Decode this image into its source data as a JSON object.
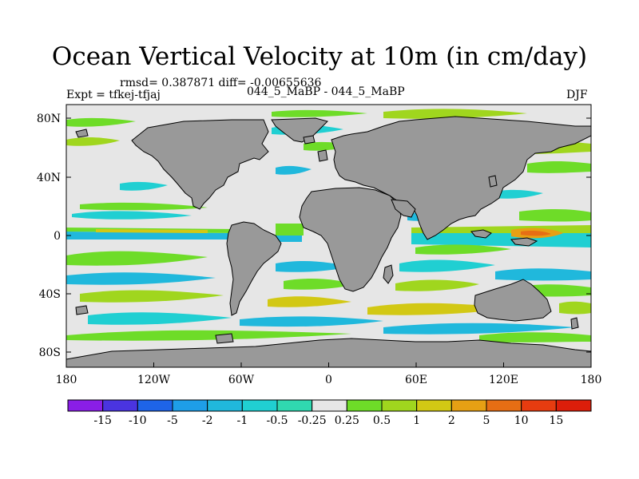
{
  "title": "Ocean Vertical Velocity at 10m (in cm/day)",
  "stats": "rmsd= 0.387871 diff= -0.00655636",
  "experiment": "Expt = tfkej-tfjaj",
  "cases": "044_5_MaBP - 044_5_MaBP",
  "season": "DJF",
  "lat_labels": [
    "80N",
    "40N",
    "0",
    "40S",
    "80S"
  ],
  "lon_labels": [
    "180",
    "120W",
    "60W",
    "0",
    "60E",
    "120E",
    "180"
  ],
  "colorbar": {
    "labels": [
      "-15",
      "-10",
      "-5",
      "-2",
      "-1",
      "-0.5",
      "-0.25",
      "0.25",
      "0.5",
      "1",
      "2",
      "5",
      "10",
      "15"
    ],
    "colors": [
      "#8a1ee6",
      "#4a34e0",
      "#1e64e8",
      "#1e9ee8",
      "#20b8dc",
      "#20cfd2",
      "#30d8b0",
      "#e6e6e6",
      "#6edc28",
      "#a0d61e",
      "#d2c814",
      "#e6a014",
      "#e66e14",
      "#e63c10",
      "#dc1e0a"
    ]
  },
  "colors": {
    "land": "#999999",
    "ocean_neutral": "#e6e6e6"
  }
}
